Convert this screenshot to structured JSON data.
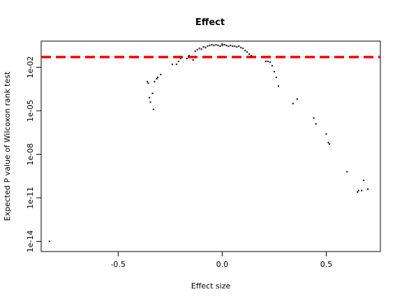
{
  "chart_data": {
    "type": "scatter",
    "title": "Effect",
    "xlabel": "Effect size",
    "ylabel": "Expected P value of Wilcoxon rank test",
    "xlim": [
      -0.87,
      0.76
    ],
    "ylim_log10": [
      -14.7,
      -0.2
    ],
    "y_scale": "log10",
    "grid": false,
    "legend": "none",
    "x_ticks": [
      {
        "value": -0.5,
        "label": "-0.5"
      },
      {
        "value": 0.0,
        "label": "0.0"
      },
      {
        "value": 0.5,
        "label": "0.5"
      }
    ],
    "y_ticks": [
      {
        "log10": -14,
        "label": "1e-14"
      },
      {
        "log10": -11,
        "label": "1e-11"
      },
      {
        "log10": -8,
        "label": "1e-08"
      },
      {
        "log10": -5,
        "label": "1e-05"
      },
      {
        "log10": -2,
        "label": "1e-02"
      }
    ],
    "threshold": {
      "log10": -1.301,
      "color": "#ff0000",
      "style": "dashed"
    },
    "point_color": "#000000",
    "points": [
      {
        "x": -0.83,
        "log10_p": -14.0
      },
      {
        "x": -0.36,
        "log10_p": -3.0
      },
      {
        "x": -0.355,
        "log10_p": -3.1
      },
      {
        "x": -0.35,
        "log10_p": -4.1
      },
      {
        "x": -0.345,
        "log10_p": -4.4
      },
      {
        "x": -0.335,
        "log10_p": -3.8
      },
      {
        "x": -0.33,
        "log10_p": -4.9
      },
      {
        "x": -0.325,
        "log10_p": -3.0
      },
      {
        "x": -0.315,
        "log10_p": -2.8
      },
      {
        "x": -0.31,
        "log10_p": -2.7
      },
      {
        "x": -0.295,
        "log10_p": -2.5
      },
      {
        "x": -0.24,
        "log10_p": -1.8
      },
      {
        "x": -0.22,
        "log10_p": -1.8
      },
      {
        "x": -0.21,
        "log10_p": -1.6
      },
      {
        "x": -0.2,
        "log10_p": -1.4
      },
      {
        "x": -0.17,
        "log10_p": -1.4
      },
      {
        "x": -0.16,
        "log10_p": -1.2
      },
      {
        "x": -0.14,
        "log10_p": -1.5
      },
      {
        "x": -0.13,
        "log10_p": -0.9
      },
      {
        "x": -0.12,
        "log10_p": -0.8
      },
      {
        "x": -0.11,
        "log10_p": -0.7
      },
      {
        "x": -0.1,
        "log10_p": -0.75
      },
      {
        "x": -0.09,
        "log10_p": -0.6
      },
      {
        "x": -0.08,
        "log10_p": -0.65
      },
      {
        "x": -0.07,
        "log10_p": -0.55
      },
      {
        "x": -0.06,
        "log10_p": -0.5
      },
      {
        "x": -0.05,
        "log10_p": -0.45
      },
      {
        "x": -0.04,
        "log10_p": -0.5
      },
      {
        "x": -0.03,
        "log10_p": -0.45
      },
      {
        "x": -0.02,
        "log10_p": -0.5
      },
      {
        "x": -0.01,
        "log10_p": -0.55
      },
      {
        "x": 0.0,
        "log10_p": -0.4
      },
      {
        "x": 0.0,
        "log10_p": -0.5
      },
      {
        "x": 0.01,
        "log10_p": -0.45
      },
      {
        "x": 0.02,
        "log10_p": -0.5
      },
      {
        "x": 0.03,
        "log10_p": -0.55
      },
      {
        "x": 0.04,
        "log10_p": -0.5
      },
      {
        "x": 0.05,
        "log10_p": -0.55
      },
      {
        "x": 0.06,
        "log10_p": -0.55
      },
      {
        "x": 0.07,
        "log10_p": -0.6
      },
      {
        "x": 0.08,
        "log10_p": -0.55
      },
      {
        "x": 0.09,
        "log10_p": -0.65
      },
      {
        "x": 0.1,
        "log10_p": -0.7
      },
      {
        "x": 0.11,
        "log10_p": -0.85
      },
      {
        "x": 0.12,
        "log10_p": -0.95
      },
      {
        "x": 0.13,
        "log10_p": -1.1
      },
      {
        "x": 0.14,
        "log10_p": -1.2
      },
      {
        "x": 0.21,
        "log10_p": -1.6
      },
      {
        "x": 0.22,
        "log10_p": -1.6
      },
      {
        "x": 0.23,
        "log10_p": -1.65
      },
      {
        "x": 0.24,
        "log10_p": -1.9
      },
      {
        "x": 0.25,
        "log10_p": -2.3
      },
      {
        "x": 0.26,
        "log10_p": -2.7
      },
      {
        "x": 0.27,
        "log10_p": -3.3
      },
      {
        "x": 0.34,
        "log10_p": -4.5
      },
      {
        "x": 0.36,
        "log10_p": -4.2
      },
      {
        "x": 0.44,
        "log10_p": -5.5
      },
      {
        "x": 0.45,
        "log10_p": -5.9
      },
      {
        "x": 0.5,
        "log10_p": -6.6
      },
      {
        "x": 0.51,
        "log10_p": -7.2
      },
      {
        "x": 0.515,
        "log10_p": -7.3
      },
      {
        "x": 0.6,
        "log10_p": -9.2
      },
      {
        "x": 0.65,
        "log10_p": -10.6
      },
      {
        "x": 0.655,
        "log10_p": -10.5
      },
      {
        "x": 0.67,
        "log10_p": -10.5
      },
      {
        "x": 0.68,
        "log10_p": -9.8
      },
      {
        "x": 0.7,
        "log10_p": -10.4
      }
    ]
  }
}
